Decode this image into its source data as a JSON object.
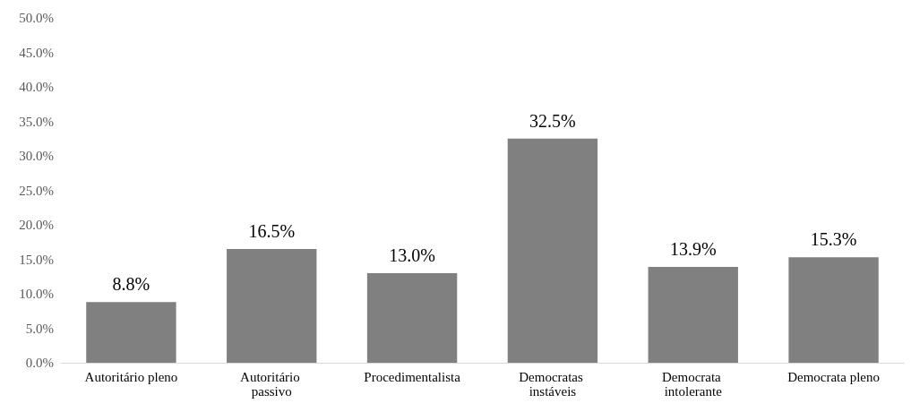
{
  "chart_data": {
    "type": "bar",
    "categories": [
      "Autoritário pleno",
      "Autoritário passivo",
      "Procedimentalista",
      "Democratas instáveis",
      "Democrata intolerante",
      "Democrata pleno"
    ],
    "values": [
      8.8,
      16.5,
      13.0,
      32.5,
      13.9,
      15.3
    ],
    "value_labels": [
      "8.8%",
      "16.5%",
      "13.0%",
      "32.5%",
      "13.9%",
      "15.3%"
    ],
    "color": "#808080",
    "ylim": [
      0,
      50
    ],
    "yticks": [
      {
        "value": 0,
        "label": "0.0%"
      },
      {
        "value": 5,
        "label": "5.0%"
      },
      {
        "value": 10,
        "label": "10.0%"
      },
      {
        "value": 15,
        "label": "15.0%"
      },
      {
        "value": 20,
        "label": "20.0%"
      },
      {
        "value": 25,
        "label": "25.0%"
      },
      {
        "value": 30,
        "label": "30.0%"
      },
      {
        "value": 35,
        "label": "35.0%"
      },
      {
        "value": 40,
        "label": "40.0%"
      },
      {
        "value": 45,
        "label": "45.0%"
      },
      {
        "value": 50,
        "label": "50.0%"
      }
    ],
    "grid": false
  }
}
